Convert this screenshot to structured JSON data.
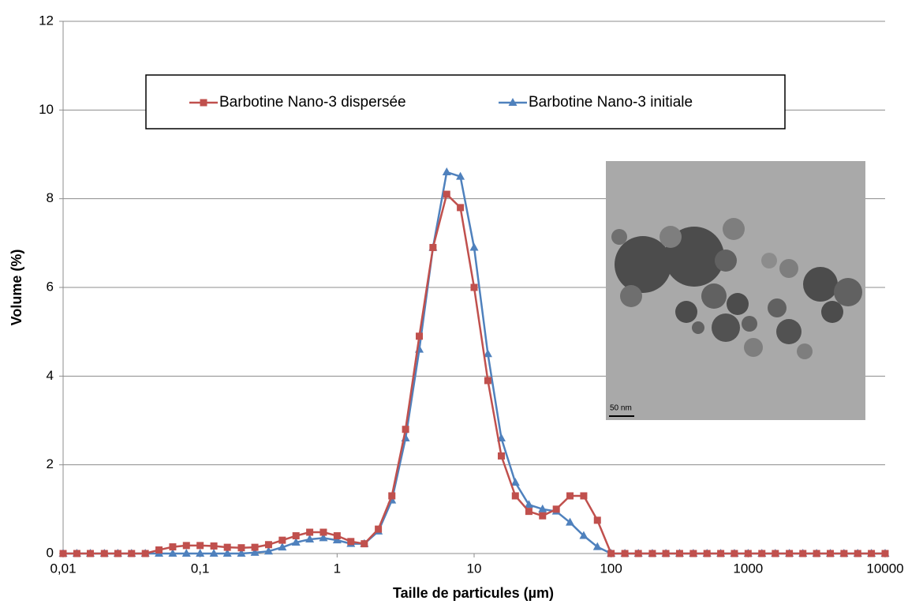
{
  "chart_data": {
    "type": "line",
    "xlabel": "Taille de particules (µm)",
    "ylabel": "Volume (%)",
    "x": [
      0.01,
      0.0126,
      0.0158,
      0.02,
      0.0251,
      0.0316,
      0.0398,
      0.0501,
      0.0631,
      0.0794,
      0.1,
      0.126,
      0.158,
      0.2,
      0.251,
      0.316,
      0.398,
      0.501,
      0.631,
      0.794,
      1,
      1.26,
      1.58,
      2,
      2.51,
      3.16,
      3.98,
      5.01,
      6.31,
      7.94,
      10,
      12.6,
      15.8,
      20,
      25.1,
      31.6,
      39.8,
      50.1,
      63.1,
      79.4,
      100,
      126,
      158,
      200,
      251,
      316,
      398,
      501,
      631,
      794,
      1000,
      1260,
      1580,
      2000,
      2510,
      3160,
      3980,
      5010,
      6310,
      7940,
      10000
    ],
    "series": [
      {
        "name": "Barbotine Nano-3 dispersée",
        "color": "#c0504d",
        "marker": "square",
        "values": [
          0,
          0,
          0,
          0,
          0,
          0,
          0,
          0.08,
          0.15,
          0.18,
          0.18,
          0.17,
          0.14,
          0.13,
          0.14,
          0.2,
          0.3,
          0.4,
          0.48,
          0.48,
          0.4,
          0.27,
          0.22,
          0.55,
          1.3,
          2.8,
          4.9,
          6.9,
          8.1,
          7.8,
          6.0,
          3.9,
          2.2,
          1.3,
          0.95,
          0.85,
          1.0,
          1.3,
          1.3,
          0.75,
          0,
          0,
          0,
          0,
          0,
          0,
          0,
          0,
          0,
          0,
          0,
          0,
          0,
          0,
          0,
          0,
          0,
          0,
          0,
          0,
          0
        ]
      },
      {
        "name": "Barbotine Nano-3 initiale",
        "color": "#4f81bd",
        "marker": "triangle",
        "values": [
          0,
          0,
          0,
          0,
          0,
          0,
          0,
          0,
          0,
          0,
          0,
          0,
          0,
          0,
          0.02,
          0.05,
          0.14,
          0.25,
          0.32,
          0.35,
          0.3,
          0.22,
          0.22,
          0.5,
          1.2,
          2.6,
          4.6,
          6.9,
          8.6,
          8.5,
          6.9,
          4.5,
          2.6,
          1.6,
          1.1,
          1.0,
          0.95,
          0.7,
          0.4,
          0.15,
          0,
          0,
          0,
          0,
          0,
          0,
          0,
          0,
          0,
          0,
          0,
          0,
          0,
          0,
          0,
          0,
          0,
          0,
          0,
          0,
          0
        ]
      }
    ],
    "xscale": "log",
    "xlim": [
      0.01,
      10000
    ],
    "xticks": [
      {
        "value": 0.01,
        "label": "0,01"
      },
      {
        "value": 0.1,
        "label": "0,1"
      },
      1,
      10,
      100,
      1000,
      10000
    ],
    "ylim": [
      0,
      12
    ],
    "yticks": [
      0,
      2,
      4,
      6,
      8,
      10,
      12
    ],
    "grid": true,
    "legend": "top",
    "inset_scale_label": "50 nm"
  }
}
